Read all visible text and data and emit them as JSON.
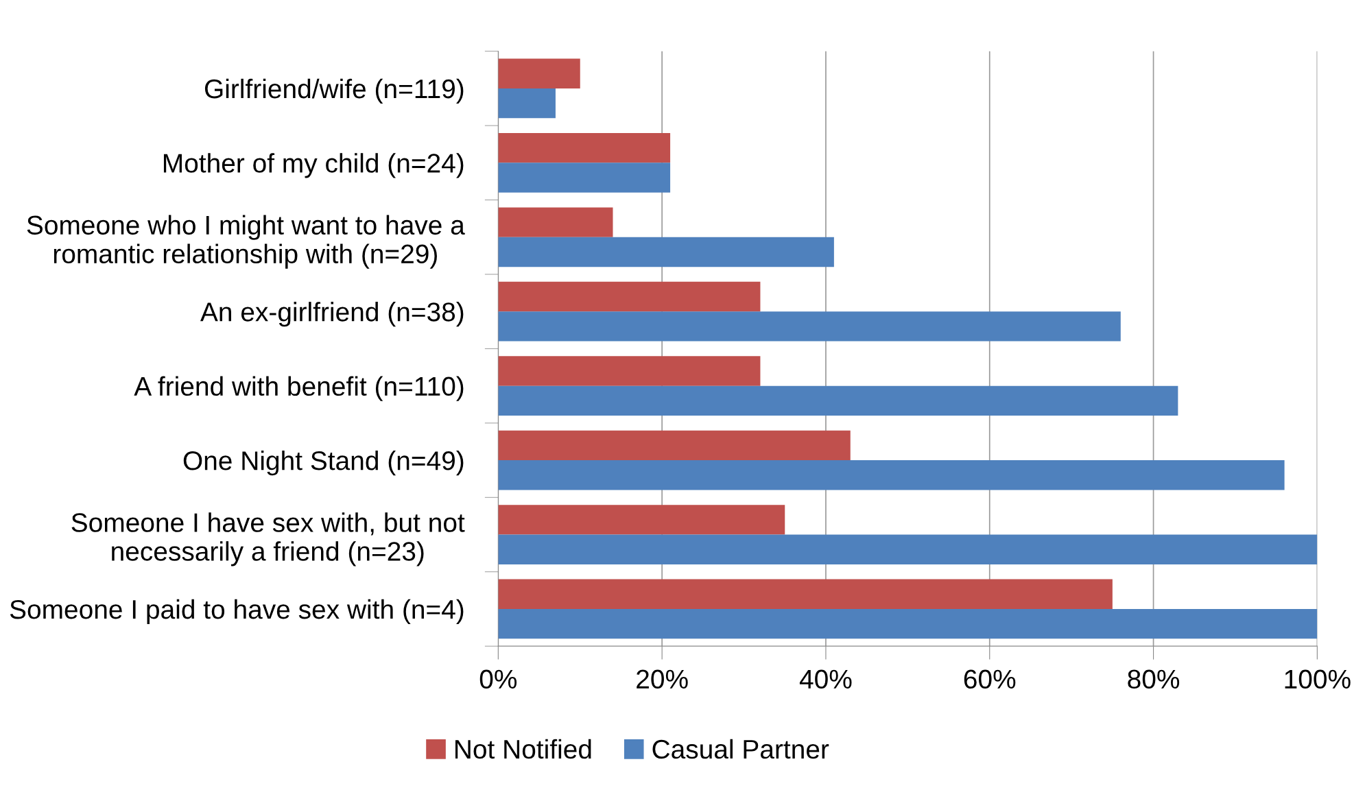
{
  "chart_data": {
    "type": "bar",
    "orientation": "horizontal",
    "categories": [
      "Girlfriend/wife (n=119)",
      "Mother of my child (n=24)",
      "Someone who I might want to have a\nromantic relationship with (n=29)",
      "An ex-girlfriend (n=38)",
      "A friend with benefit (n=110)",
      "One Night Stand (n=49)",
      "Someone I have sex with, but not\nnecessarily a friend (n=23)",
      "Someone I paid to have sex with (n=4)"
    ],
    "series": [
      {
        "name": "Not Notified",
        "color": "#c0504d",
        "values": [
          10,
          21,
          14,
          32,
          32,
          43,
          35,
          75
        ]
      },
      {
        "name": "Casual Partner",
        "color": "#4f81bd",
        "values": [
          7,
          21,
          41,
          76,
          83,
          96,
          100,
          100
        ]
      }
    ],
    "xlim": [
      0,
      100
    ],
    "xticks": [
      {
        "value": 0,
        "label": "0%"
      },
      {
        "value": 20,
        "label": "20%"
      },
      {
        "value": 40,
        "label": "40%"
      },
      {
        "value": 60,
        "label": "60%"
      },
      {
        "value": 80,
        "label": "80%"
      },
      {
        "value": 100,
        "label": "100%"
      }
    ],
    "grid": "x",
    "legend": "bottom"
  }
}
